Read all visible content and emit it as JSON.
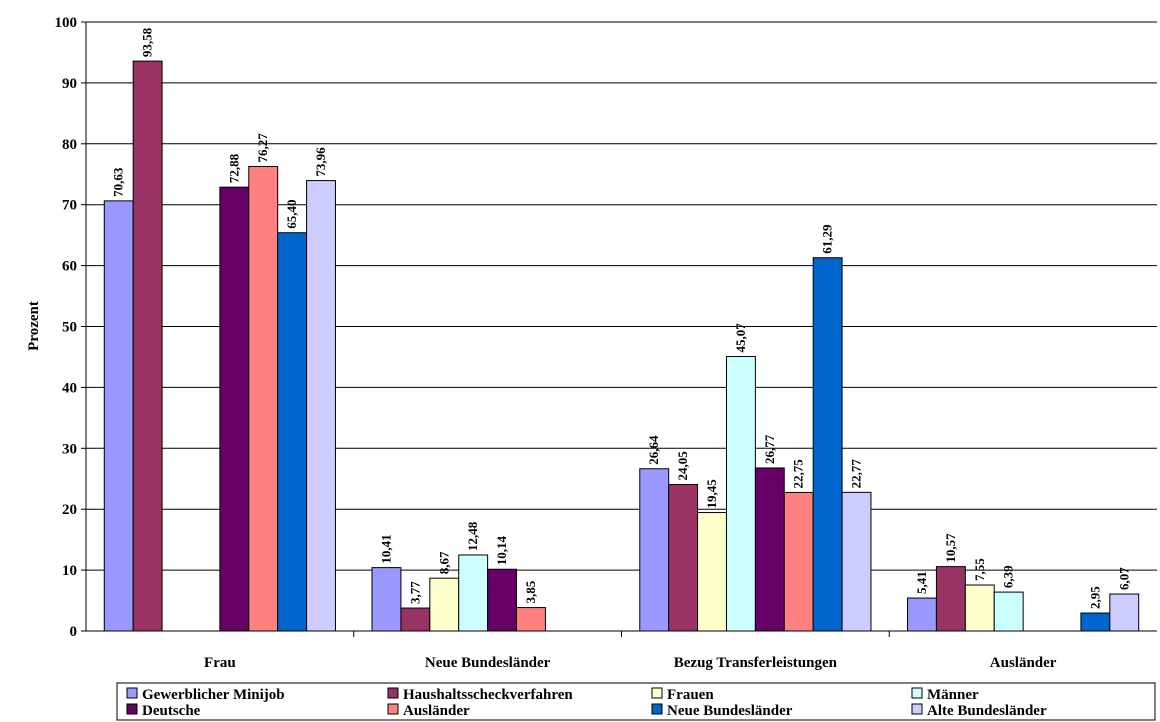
{
  "chart_data": {
    "type": "bar",
    "ylabel": "Prozent",
    "ylim": [
      0,
      100
    ],
    "y_ticks": [
      0,
      10,
      20,
      30,
      40,
      50,
      60,
      70,
      80,
      90,
      100
    ],
    "grid": true,
    "legend_position": "bottom",
    "categories": [
      "Frau",
      "Neue Bundesländer",
      "Bezug Transferleistungen",
      "Ausländer"
    ],
    "series": [
      {
        "name": "Gewerblicher Minijob",
        "color": "#9999ff",
        "values": [
          70.63,
          10.41,
          26.64,
          5.41
        ],
        "labels": [
          "70,63",
          "10,41",
          "26,64",
          "5,41"
        ]
      },
      {
        "name": "Haushaltsscheckverfahren",
        "color": "#993366",
        "values": [
          93.58,
          3.77,
          24.05,
          10.57
        ],
        "labels": [
          "93,58",
          "3,77",
          "24,05",
          "10,57"
        ]
      },
      {
        "name": "Frauen",
        "color": "#ffffcc",
        "values": [
          null,
          8.67,
          19.45,
          7.55
        ],
        "labels": [
          "",
          "8,67",
          "19,45",
          "7,55"
        ]
      },
      {
        "name": "Männer",
        "color": "#ccffff",
        "values": [
          null,
          12.48,
          45.07,
          6.39
        ],
        "labels": [
          "",
          "12,48",
          "45,07",
          "6,39"
        ]
      },
      {
        "name": "Deutsche",
        "color": "#660066",
        "values": [
          72.88,
          10.14,
          26.77,
          null
        ],
        "labels": [
          "72,88",
          "10,14",
          "26,77",
          ""
        ]
      },
      {
        "name": "Ausländer",
        "color": "#ff8080",
        "values": [
          76.27,
          3.85,
          22.75,
          null
        ],
        "labels": [
          "76,27",
          "3,85",
          "22,75",
          ""
        ]
      },
      {
        "name": "Neue Bundesländer",
        "color": "#0066cc",
        "values": [
          65.4,
          null,
          61.29,
          2.95
        ],
        "labels": [
          "65,40",
          "",
          "61,29",
          "2,95"
        ]
      },
      {
        "name": "Alte Bundesländer",
        "color": "#ccccff",
        "values": [
          73.96,
          null,
          22.77,
          6.07
        ],
        "labels": [
          "73,96",
          "",
          "22,77",
          "6,07"
        ]
      }
    ]
  }
}
